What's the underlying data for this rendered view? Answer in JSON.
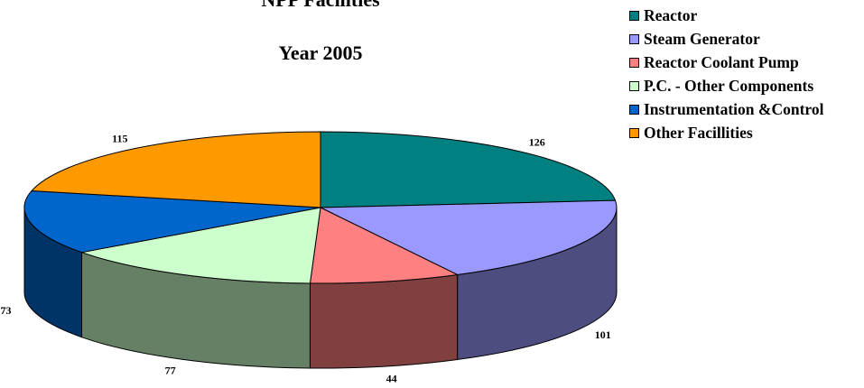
{
  "chart_data": {
    "type": "pie",
    "title": "NPP Facilities",
    "subtitle": "Year 2005",
    "categories": [
      "Reactor",
      "Steam Generator",
      "Reactor Coolant Pump",
      "P.C. - Other Components",
      "Instrumentation &Control",
      "Other Facillities"
    ],
    "values": [
      126,
      101,
      44,
      77,
      73,
      115
    ],
    "colors": [
      "#008080",
      "#9999FF",
      "#FF8080",
      "#CCFFCC",
      "#0066CC",
      "#FF9900"
    ],
    "side_colors": [
      "#004C4C",
      "#4D4D80",
      "#804040",
      "#668066",
      "#003366",
      "#804C00"
    ],
    "legend_position": "top-right",
    "style": "3d"
  }
}
